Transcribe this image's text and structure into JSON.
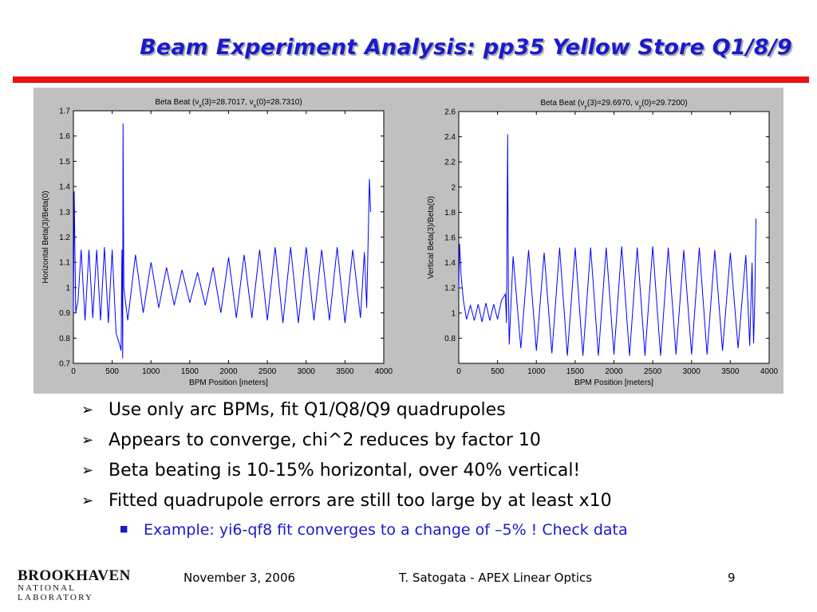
{
  "slide": {
    "title": "Beam Experiment Analysis: pp35 Yellow Store Q1/8/9",
    "bullets": [
      "Use only arc BPMs, fit Q1/Q8/Q9 quadrupoles",
      "Appears to converge, chi^2 reduces by factor 10",
      "Beta beating is 10-15% horizontal, over 40% vertical!",
      "Fitted quadrupole errors are still too large by at least x10"
    ],
    "sub_bullet": "Example: yi6-qf8 fit converges to a change of –5% ! Check data",
    "footer": {
      "date": "November 3, 2006",
      "center": "T. Satogata - APEX Linear Optics",
      "page": "9"
    },
    "logo": {
      "line1": "BROOKHAVEN",
      "line2": "NATIONAL LABORATORY"
    },
    "colors": {
      "title": "#1a1acc",
      "rule": "#ee1111",
      "figure_bg": "#c0c0c0",
      "series": "#0000ff",
      "sub_bullet": "#1a1acc"
    }
  },
  "chart_data": [
    {
      "type": "line",
      "title": "Beta Beat (ν_x(3)=28.7017, ν_x(0)=28.7310)",
      "xlabel": "BPM Position [meters]",
      "ylabel": "Horizontal Beta(3)/Beta(0)",
      "xlim": [
        0,
        4000
      ],
      "ylim": [
        0.7,
        1.7
      ],
      "xticks": [
        0,
        500,
        1000,
        1500,
        2000,
        2500,
        3000,
        3500,
        4000
      ],
      "yticks": [
        0.7,
        0.8,
        0.9,
        1,
        1.1,
        1.2,
        1.3,
        1.4,
        1.5,
        1.6,
        1.7
      ],
      "grid": false,
      "series": [
        {
          "x": [
            0,
            10,
            30,
            60,
            100,
            150,
            200,
            250,
            300,
            350,
            400,
            450,
            500,
            550,
            600,
            615,
            625,
            635,
            640,
            650,
            700,
            800,
            900,
            1000,
            1100,
            1200,
            1300,
            1400,
            1500,
            1600,
            1700,
            1800,
            1900,
            2000,
            2100,
            2200,
            2300,
            2400,
            2500,
            2600,
            2700,
            2800,
            2900,
            3000,
            3100,
            3200,
            3300,
            3400,
            3500,
            3600,
            3700,
            3750,
            3780,
            3800,
            3815,
            3830
          ],
          "y": [
            0.9,
            1.38,
            0.9,
            0.95,
            1.15,
            0.87,
            1.15,
            0.88,
            1.15,
            0.87,
            1.16,
            0.86,
            1.15,
            0.82,
            0.77,
            0.75,
            1.15,
            0.72,
            1.65,
            1.0,
            0.87,
            1.13,
            0.9,
            1.1,
            0.92,
            1.08,
            0.93,
            1.07,
            0.94,
            1.06,
            0.93,
            1.08,
            0.9,
            1.12,
            0.88,
            1.13,
            0.88,
            1.15,
            0.87,
            1.16,
            0.86,
            1.16,
            0.86,
            1.16,
            0.87,
            1.15,
            0.87,
            1.16,
            0.86,
            1.15,
            0.88,
            1.14,
            0.92,
            1.2,
            1.43,
            1.3
          ]
        }
      ]
    },
    {
      "type": "line",
      "title": "Beta Beat (ν_y(3)=29.6970, ν_y(0)=29.7200)",
      "xlabel": "BPM Position [meters]",
      "ylabel": "Vertical Beta(3)/Beta(0)",
      "xlim": [
        0,
        4000
      ],
      "ylim": [
        0.6,
        2.6
      ],
      "xticks": [
        0,
        500,
        1000,
        1500,
        2000,
        2500,
        3000,
        3500,
        4000
      ],
      "yticks": [
        0.8,
        1,
        1.2,
        1.4,
        1.6,
        1.8,
        2,
        2.2,
        2.4,
        2.6
      ],
      "grid": false,
      "series": [
        {
          "x": [
            0,
            10,
            30,
            60,
            100,
            150,
            200,
            250,
            300,
            350,
            400,
            450,
            500,
            550,
            600,
            615,
            630,
            640,
            650,
            700,
            800,
            900,
            1000,
            1100,
            1200,
            1300,
            1400,
            1500,
            1600,
            1700,
            1800,
            1900,
            2000,
            2100,
            2200,
            2300,
            2400,
            2500,
            2600,
            2700,
            2800,
            2900,
            3000,
            3100,
            3200,
            3300,
            3400,
            3500,
            3600,
            3700,
            3750,
            3780,
            3800,
            3815,
            3830
          ],
          "y": [
            1.2,
            1.55,
            1.3,
            1.1,
            0.95,
            1.06,
            0.94,
            1.07,
            0.93,
            1.08,
            0.94,
            1.07,
            0.95,
            1.1,
            1.15,
            0.92,
            2.42,
            1.2,
            0.75,
            1.45,
            0.72,
            1.5,
            0.7,
            1.48,
            0.68,
            1.52,
            0.66,
            1.52,
            0.66,
            1.52,
            0.66,
            1.52,
            0.67,
            1.53,
            0.66,
            1.52,
            0.66,
            1.53,
            0.66,
            1.52,
            0.67,
            1.5,
            0.67,
            1.52,
            0.67,
            1.5,
            0.7,
            1.48,
            0.72,
            1.46,
            0.74,
            1.4,
            0.76,
            1.1,
            1.75
          ]
        }
      ]
    }
  ]
}
